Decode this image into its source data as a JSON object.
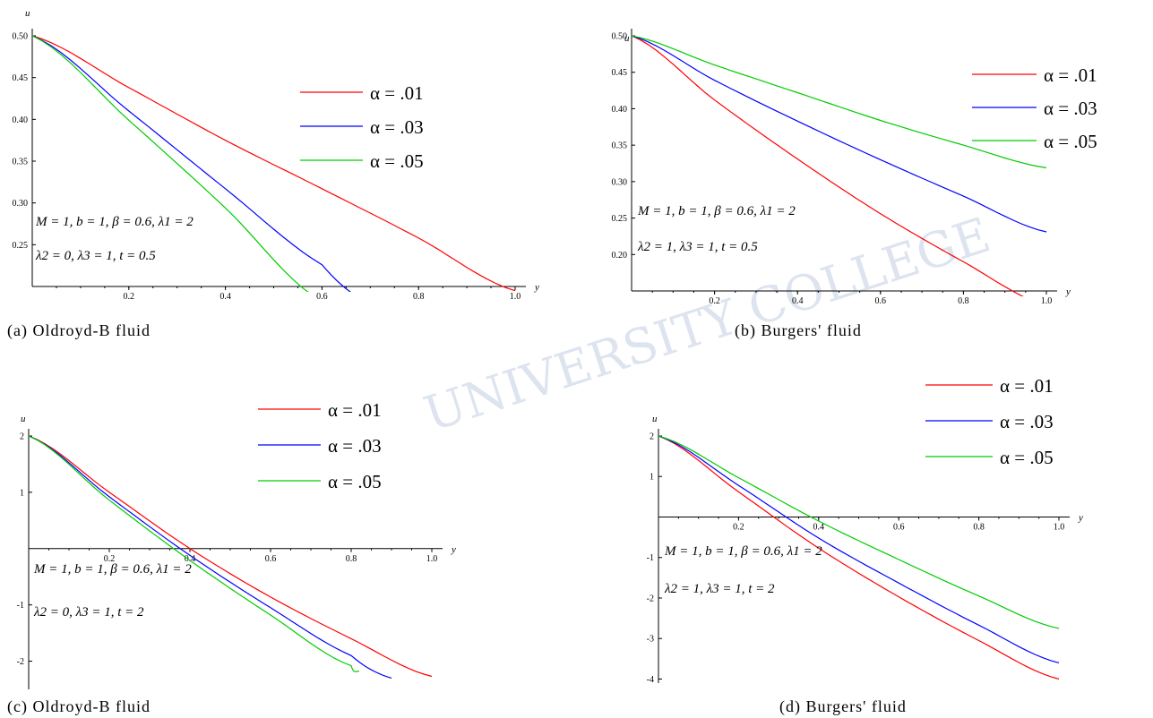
{
  "watermark": "UNIVERSITY COLLEGE",
  "chart_data": [
    {
      "type": "line",
      "caption": "(a) Oldroyd-B fluid",
      "xlabel": "y",
      "ylabel": "u",
      "xlim": [
        0,
        1.0
      ],
      "ylim": [
        0.2,
        0.5
      ],
      "xticks": [
        "0.2",
        "0.4",
        "0.6",
        "0.8",
        "1.0"
      ],
      "yticks": [
        "0.50",
        "0.45",
        "0.40",
        "0.35",
        "0.30",
        "0.25"
      ],
      "legend": [
        "α = .01",
        "α = .03",
        "α = .05"
      ],
      "params": [
        "M = 1, b = 1, β = 0.6, λ1 = 2",
        "λ2 = 0, λ3 = 1, t = 0.5"
      ],
      "series": [
        {
          "name": "α = .01",
          "color": "#ff0000",
          "x": [
            0,
            0.2,
            0.4,
            0.6,
            0.8,
            1.0
          ],
          "y": [
            0.5,
            0.438,
            0.375,
            0.317,
            0.258,
            0.195
          ]
        },
        {
          "name": "α = .03",
          "color": "#0000ff",
          "x": [
            0,
            0.2,
            0.4,
            0.6,
            0.7
          ],
          "y": [
            0.5,
            0.41,
            0.317,
            0.226,
            0.18
          ]
        },
        {
          "name": "α = .05",
          "color": "#00cc00",
          "x": [
            0,
            0.2,
            0.4,
            0.6
          ],
          "y": [
            0.5,
            0.399,
            0.294,
            0.183
          ]
        }
      ]
    },
    {
      "type": "line",
      "caption": "(b) Burgers' fluid",
      "xlabel": "y",
      "ylabel": "u",
      "xlim": [
        0,
        1.0
      ],
      "ylim": [
        0.15,
        0.5
      ],
      "xticks": [
        "0.2",
        "0.4",
        "0.6",
        "0.8",
        "1.0"
      ],
      "yticks": [
        "0.50",
        "0.45",
        "0.40",
        "0.35",
        "0.30",
        "0.25",
        "0.20"
      ],
      "legend": [
        "α = .01",
        "α = .03",
        "α = .05"
      ],
      "params": [
        "M = 1, b = 1, β = 0.6, λ1 = 2",
        "λ2 = 1, λ3 = 1, t = 0.5"
      ],
      "series": [
        {
          "name": "α = .01",
          "color": "#ff0000",
          "x": [
            0,
            0.2,
            0.4,
            0.6,
            0.8,
            1.0
          ],
          "y": [
            0.5,
            0.412,
            0.331,
            0.256,
            0.19,
            0.13
          ]
        },
        {
          "name": "α = .03",
          "color": "#0000ff",
          "x": [
            0,
            0.2,
            0.4,
            0.6,
            0.8,
            1.0
          ],
          "y": [
            0.5,
            0.439,
            0.383,
            0.33,
            0.28,
            0.231
          ]
        },
        {
          "name": "α = .05",
          "color": "#00cc00",
          "x": [
            0,
            0.2,
            0.4,
            0.6,
            0.8,
            1.0
          ],
          "y": [
            0.5,
            0.46,
            0.422,
            0.384,
            0.35,
            0.319
          ]
        }
      ]
    },
    {
      "type": "line",
      "caption": "(c) Oldroyd-B fluid",
      "xlabel": "y",
      "ylabel": "u",
      "xlim": [
        0,
        1.0
      ],
      "ylim": [
        -2.5,
        2.0
      ],
      "xticks": [
        "0.2",
        "0.4",
        "0.6",
        "0.8",
        "1.0"
      ],
      "yticks": [
        "2",
        "1",
        "-1",
        "-2"
      ],
      "legend": [
        "α = .01",
        "α = .03",
        "α = .05"
      ],
      "params": [
        "M = 1, b = 1, β = 0.6, λ1 = 2",
        "λ2 = 0, λ3 = 1, t = 2"
      ],
      "series": [
        {
          "name": "α = .01",
          "color": "#ff0000",
          "x": [
            0,
            0.2,
            0.4,
            0.6,
            0.8,
            1.0
          ],
          "y": [
            2.0,
            1.0,
            0.0,
            -0.86,
            -1.6,
            -2.27
          ]
        },
        {
          "name": "α = .03",
          "color": "#0000ff",
          "x": [
            0,
            0.2,
            0.4,
            0.6,
            0.8,
            0.9
          ],
          "y": [
            2.0,
            0.92,
            -0.12,
            -1.05,
            -1.9,
            -2.3
          ]
        },
        {
          "name": "α = .05",
          "color": "#00cc00",
          "x": [
            0,
            0.2,
            0.4,
            0.6,
            0.8,
            0.82
          ],
          "y": [
            2.0,
            0.86,
            -0.21,
            -1.18,
            -2.08,
            -2.18
          ]
        }
      ]
    },
    {
      "type": "line",
      "caption": "(d) Burgers' fluid",
      "xlabel": "y",
      "ylabel": "u",
      "xlim": [
        0,
        1.0
      ],
      "ylim": [
        -4.1,
        2.0
      ],
      "xticks": [
        "0.2",
        "0.4",
        "0.6",
        "0.8",
        "1.0"
      ],
      "yticks": [
        "2",
        "1",
        "-1",
        "-2",
        "-3",
        "-4"
      ],
      "legend": [
        "α = .01",
        "α = .03",
        "α = .05"
      ],
      "params": [
        "M = 1, b = 1, β = 0.6, λ1 = 2",
        "λ2 = 1, λ3 = 1, t = 2"
      ],
      "series": [
        {
          "name": "α = .01",
          "color": "#ff0000",
          "x": [
            0,
            0.2,
            0.4,
            0.6,
            0.8,
            1.0
          ],
          "y": [
            2.0,
            0.62,
            -0.77,
            -1.97,
            -3.05,
            -4.0
          ]
        },
        {
          "name": "α = .03",
          "color": "#0000ff",
          "x": [
            0,
            0.2,
            0.4,
            0.6,
            0.8,
            1.0
          ],
          "y": [
            2.0,
            0.78,
            -0.52,
            -1.63,
            -2.67,
            -3.6
          ]
        },
        {
          "name": "α = .05",
          "color": "#00cc00",
          "x": [
            0,
            0.2,
            0.4,
            0.6,
            0.8,
            1.0
          ],
          "y": [
            2.0,
            0.97,
            -0.1,
            -1.05,
            -1.95,
            -2.75
          ]
        }
      ]
    }
  ]
}
